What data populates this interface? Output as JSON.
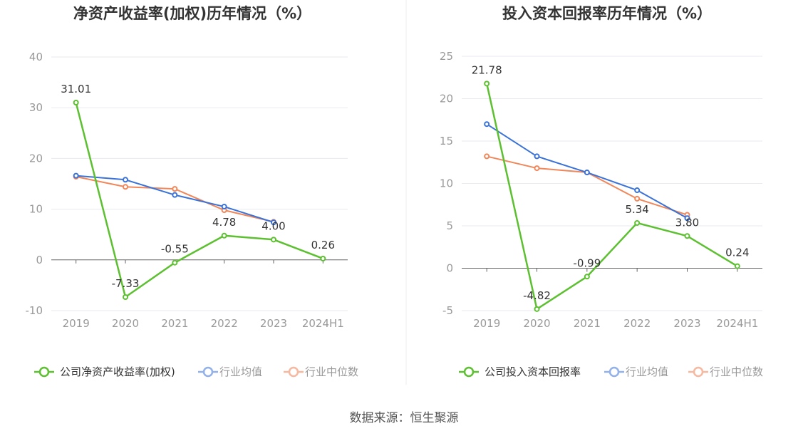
{
  "source": "数据来源：恒生聚源",
  "colors": {
    "company": "#5cc030",
    "industry_avg": "#3a72d8",
    "industry_median": "#f0875a",
    "legend_avg": "#92b0ea",
    "legend_median": "#f7b8a0",
    "grid": "#e8eaf0",
    "axis": "#666666"
  },
  "chart_data": [
    {
      "type": "line",
      "title": "净资产收益率(加权)历年情况（%）",
      "categories": [
        "2019",
        "2020",
        "2021",
        "2022",
        "2023",
        "2024H1"
      ],
      "ylim": [
        -10,
        40
      ],
      "yticks": [
        "40",
        "30",
        "20",
        "10",
        "0",
        "-10"
      ],
      "ytick_values": [
        40,
        30,
        20,
        10,
        0,
        -10
      ],
      "series": [
        {
          "key": "company",
          "name": "公司净资产收益率(加权)",
          "values": [
            31.01,
            -7.33,
            -0.55,
            4.78,
            4.0,
            0.26
          ],
          "labels": [
            "31.01",
            "-7.33",
            "-0.55",
            "4.78",
            "4.00",
            "0.26"
          ]
        },
        {
          "key": "industry_avg",
          "name": "行业均值",
          "values": [
            16.6,
            15.8,
            12.8,
            10.5,
            7.4,
            null
          ]
        },
        {
          "key": "industry_median",
          "name": "行业中位数",
          "values": [
            16.4,
            14.4,
            14.0,
            9.8,
            7.5,
            null
          ]
        }
      ]
    },
    {
      "type": "line",
      "title": "投入资本回报率历年情况（%）",
      "categories": [
        "2019",
        "2020",
        "2021",
        "2022",
        "2023",
        "2024H1"
      ],
      "ylim": [
        -5,
        25
      ],
      "yticks": [
        "25",
        "20",
        "15",
        "10",
        "5",
        "0",
        "-5"
      ],
      "ytick_values": [
        25,
        20,
        15,
        10,
        5,
        0,
        -5
      ],
      "series": [
        {
          "key": "company",
          "name": "公司投入资本回报率",
          "values": [
            21.78,
            -4.82,
            -0.99,
            5.34,
            3.8,
            0.24
          ],
          "labels": [
            "21.78",
            "-4.82",
            "-0.99",
            "5.34",
            "3.80",
            "0.24"
          ]
        },
        {
          "key": "industry_avg",
          "name": "行业均值",
          "values": [
            17.0,
            13.2,
            11.3,
            9.2,
            5.9,
            null
          ]
        },
        {
          "key": "industry_median",
          "name": "行业中位数",
          "values": [
            13.2,
            11.8,
            11.3,
            8.2,
            6.3,
            null
          ]
        }
      ]
    }
  ]
}
